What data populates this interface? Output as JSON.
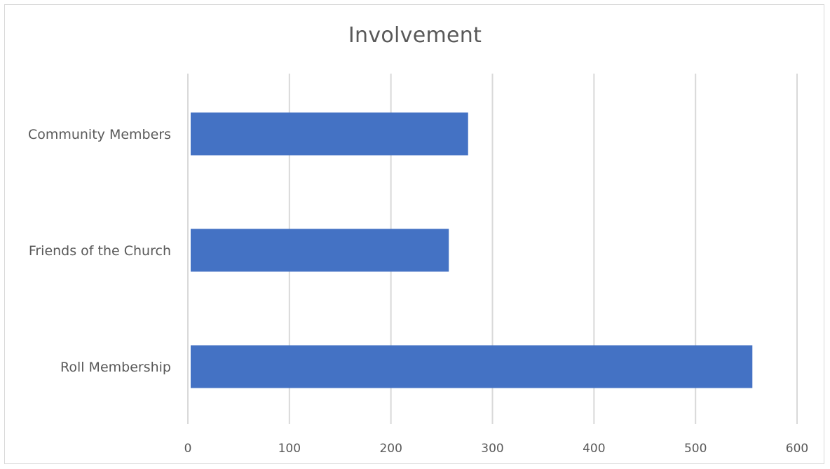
{
  "chart_data": {
    "type": "bar",
    "orientation": "horizontal",
    "title": "Involvement",
    "categories": [
      "Community Members",
      "Friends of the Church",
      "Roll Membership"
    ],
    "values": [
      276,
      257,
      556
    ],
    "xlim": [
      0,
      600
    ],
    "xticks": [
      0,
      100,
      200,
      300,
      400,
      500,
      600
    ],
    "xlabel": "",
    "ylabel": "",
    "grid": "vertical",
    "legend": "none",
    "bar_color": "#4472c4",
    "grid_color": "#d9d9d9",
    "text_color": "#595959"
  }
}
